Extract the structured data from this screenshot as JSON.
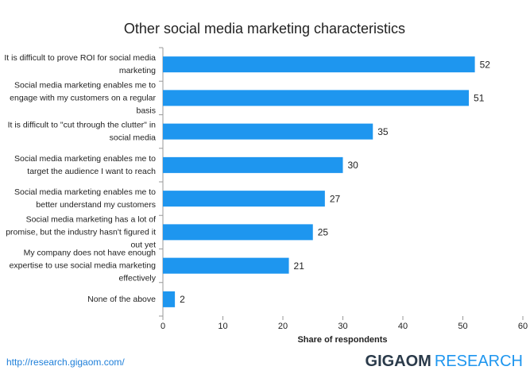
{
  "chart_data": {
    "type": "bar",
    "orientation": "horizontal",
    "title": "Other social media marketing characteristics",
    "categories": [
      "It is difficult to prove ROI for social media marketing",
      "Social media marketing enables me to engage with my customers on a regular basis",
      "It is difficult to \"cut through the clutter\" in social media",
      "Social media marketing enables me to target the audience I want to reach",
      "Social media marketing enables me to better understand my customers",
      "Social media marketing has a lot of promise, but the industry hasn't figured it out yet",
      "My company does not have enough expertise to use social media marketing effectively",
      "None of the above"
    ],
    "values": [
      52,
      51,
      35,
      30,
      27,
      25,
      21,
      2
    ],
    "color": "#1e96ef",
    "xlim": [
      0,
      60
    ],
    "xticks": [
      0,
      10,
      20,
      30,
      40,
      50,
      60
    ],
    "xlabel": "Share of respondents",
    "grid": false
  },
  "footer": {
    "url": "http://research.gigaom.com/",
    "brand": "GIGAOM",
    "brand_suffix": "RESEARCH"
  }
}
